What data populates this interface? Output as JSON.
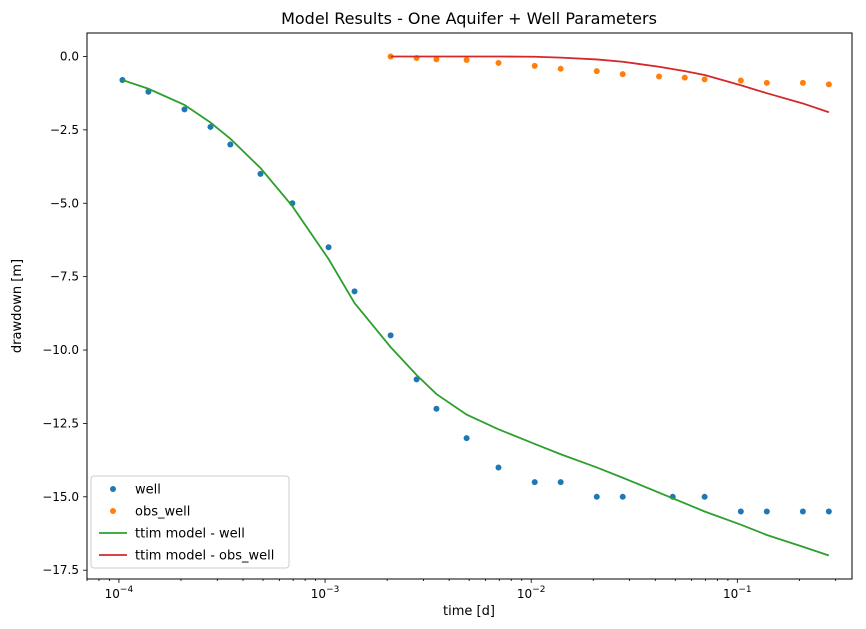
{
  "chart_data": {
    "type": "scatter",
    "title": "Model Results - One Aquifer + Well Parameters",
    "xlabel": "time [d]",
    "ylabel": "drawdown [m]",
    "xscale": "log",
    "xlim": [
      7e-05,
      0.36
    ],
    "ylim": [
      -17.8,
      0.8
    ],
    "x_ticks": [
      {
        "value": 0.0001,
        "base": "10",
        "exp": "−4"
      },
      {
        "value": 0.001,
        "base": "10",
        "exp": "−3"
      },
      {
        "value": 0.01,
        "base": "10",
        "exp": "−2"
      },
      {
        "value": 0.1,
        "base": "10",
        "exp": "−1"
      }
    ],
    "y_ticks": [
      {
        "value": 0.0,
        "label": "0.0"
      },
      {
        "value": -2.5,
        "label": "−2.5"
      },
      {
        "value": -5.0,
        "label": "−5.0"
      },
      {
        "value": -7.5,
        "label": "−7.5"
      },
      {
        "value": -10.0,
        "label": "−10.0"
      },
      {
        "value": -12.5,
        "label": "−12.5"
      },
      {
        "value": -15.0,
        "label": "−15.0"
      },
      {
        "value": -17.5,
        "label": "−17.5"
      }
    ],
    "grid": false,
    "legend_position": "lower-left",
    "series": [
      {
        "name": "well",
        "kind": "points",
        "color": "#1f77b4",
        "x": [
          0.000104,
          0.000139,
          0.000208,
          0.000278,
          0.000347,
          0.000486,
          0.000694,
          0.00104,
          0.00139,
          0.00208,
          0.00278,
          0.00347,
          0.00486,
          0.00694,
          0.0104,
          0.0139,
          0.0208,
          0.0278,
          0.0486,
          0.0694,
          0.104,
          0.139,
          0.208,
          0.278
        ],
        "y": [
          -0.8,
          -1.2,
          -1.8,
          -2.4,
          -3.0,
          -4.0,
          -5.0,
          -6.5,
          -8.0,
          -9.5,
          -11.0,
          -12.0,
          -13.0,
          -14.0,
          -14.5,
          -14.5,
          -15.0,
          -15.0,
          -15.0,
          -15.0,
          -15.5,
          -15.5,
          -15.5,
          -15.5
        ]
      },
      {
        "name": "obs_well",
        "kind": "points",
        "color": "#ff7f0e",
        "x": [
          0.00208,
          0.00278,
          0.00347,
          0.00486,
          0.00694,
          0.0104,
          0.0139,
          0.0208,
          0.0278,
          0.0417,
          0.0556,
          0.0694,
          0.104,
          0.139,
          0.208,
          0.278
        ],
        "y": [
          0.0,
          -0.05,
          -0.1,
          -0.12,
          -0.22,
          -0.32,
          -0.42,
          -0.5,
          -0.6,
          -0.68,
          -0.72,
          -0.78,
          -0.82,
          -0.9,
          -0.9,
          -0.95
        ]
      },
      {
        "name": "ttim model - well",
        "kind": "line",
        "color": "#2ca02c",
        "x": [
          0.000104,
          0.000139,
          0.000208,
          0.000278,
          0.000347,
          0.000486,
          0.000694,
          0.00104,
          0.00139,
          0.00208,
          0.00278,
          0.00347,
          0.00486,
          0.00694,
          0.0104,
          0.0139,
          0.0208,
          0.0278,
          0.0486,
          0.0694,
          0.104,
          0.139,
          0.208,
          0.278
        ],
        "y": [
          -0.8,
          -1.1,
          -1.65,
          -2.25,
          -2.8,
          -3.8,
          -5.1,
          -6.9,
          -8.4,
          -9.9,
          -10.85,
          -11.5,
          -12.2,
          -12.7,
          -13.2,
          -13.55,
          -14.0,
          -14.35,
          -15.05,
          -15.5,
          -15.95,
          -16.3,
          -16.7,
          -17.0
        ]
      },
      {
        "name": "ttim model - obs_well",
        "kind": "line",
        "color": "#d62728",
        "x": [
          0.00208,
          0.00278,
          0.00347,
          0.00486,
          0.00694,
          0.0104,
          0.0139,
          0.0208,
          0.0278,
          0.0417,
          0.0556,
          0.0694,
          0.104,
          0.139,
          0.208,
          0.278
        ],
        "y": [
          0.0,
          0.0,
          0.0,
          0.0,
          0.0,
          -0.01,
          -0.04,
          -0.1,
          -0.18,
          -0.35,
          -0.5,
          -0.63,
          -0.98,
          -1.25,
          -1.6,
          -1.9
        ]
      }
    ]
  }
}
